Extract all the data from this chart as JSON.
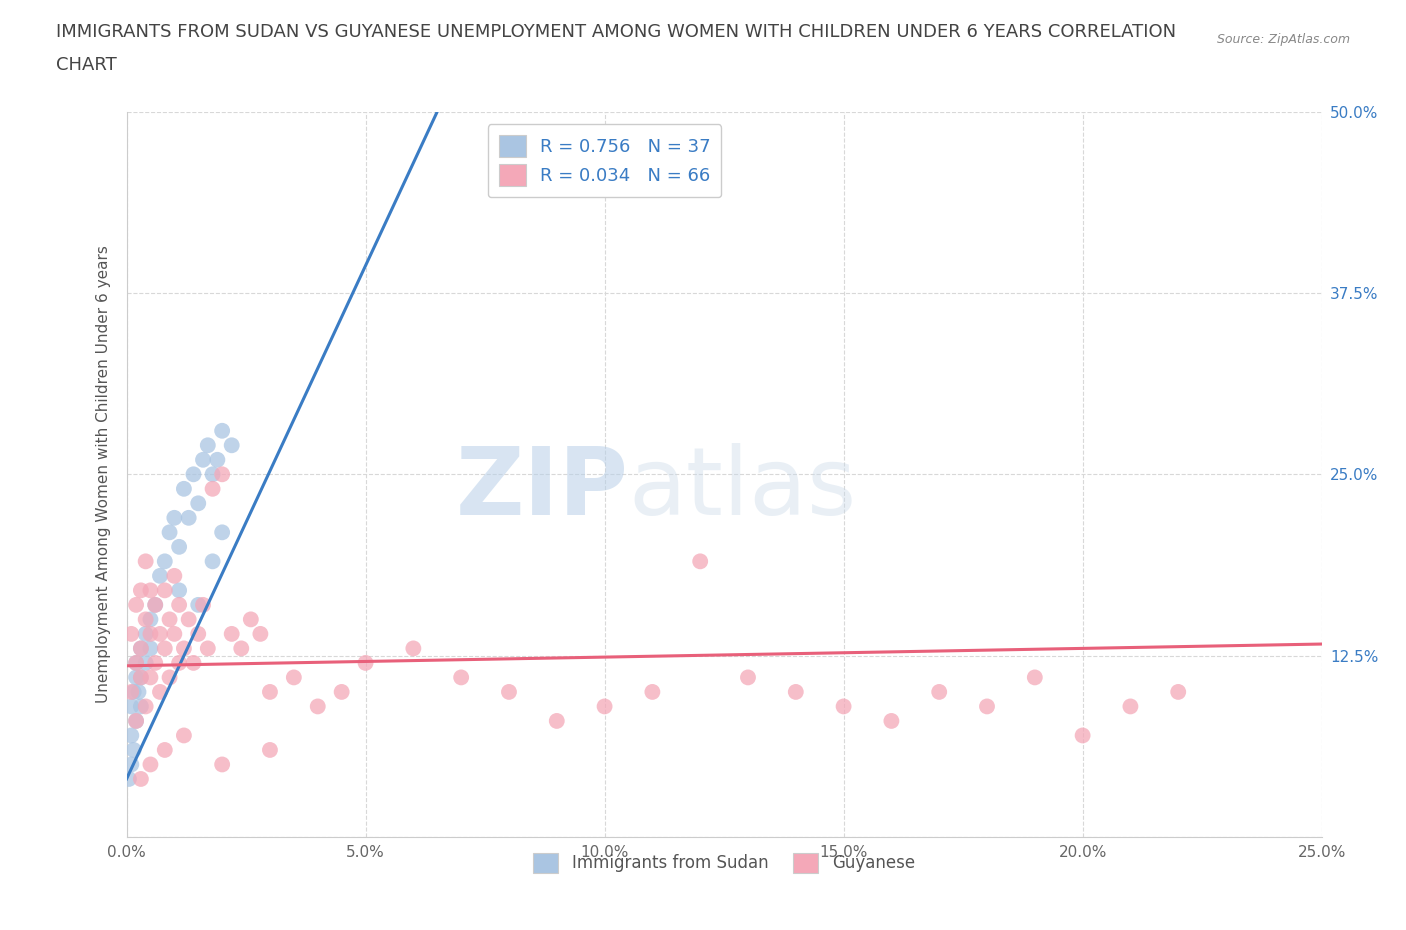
{
  "title_line1": "IMMIGRANTS FROM SUDAN VS GUYANESE UNEMPLOYMENT AMONG WOMEN WITH CHILDREN UNDER 6 YEARS CORRELATION",
  "title_line2": "CHART",
  "source": "Source: ZipAtlas.com",
  "ylabel": "Unemployment Among Women with Children Under 6 years",
  "xlim": [
    0.0,
    0.25
  ],
  "ylim": [
    0.0,
    0.5
  ],
  "xticks": [
    0.0,
    0.05,
    0.1,
    0.15,
    0.2,
    0.25
  ],
  "xtick_labels": [
    "0.0%",
    "5.0%",
    "10.0%",
    "15.0%",
    "20.0%",
    "25.0%"
  ],
  "yticks": [
    0.0,
    0.125,
    0.25,
    0.375,
    0.5
  ],
  "ytick_labels": [
    "",
    "12.5%",
    "25.0%",
    "37.5%",
    "50.0%"
  ],
  "legend_labels": [
    "Immigrants from Sudan",
    "Guyanese"
  ],
  "R_sudan": 0.756,
  "N_sudan": 37,
  "R_guyanese": 0.034,
  "N_guyanese": 66,
  "color_sudan": "#aac5e2",
  "color_guyanese": "#f4a8b8",
  "line_color_sudan": "#3a7cc4",
  "line_color_guyanese": "#e8607a",
  "watermark_zip": "ZIP",
  "watermark_atlas": "atlas",
  "background_color": "#ffffff",
  "grid_color": "#d8d8d8",
  "title_fontsize": 13,
  "axis_label_fontsize": 11,
  "tick_fontsize": 11,
  "sudan_x": [
    0.0005,
    0.001,
    0.001,
    0.001,
    0.0015,
    0.0015,
    0.002,
    0.002,
    0.002,
    0.0025,
    0.003,
    0.003,
    0.003,
    0.004,
    0.004,
    0.005,
    0.005,
    0.006,
    0.007,
    0.008,
    0.009,
    0.01,
    0.011,
    0.012,
    0.013,
    0.014,
    0.015,
    0.016,
    0.017,
    0.018,
    0.019,
    0.02,
    0.022,
    0.015,
    0.018,
    0.02,
    0.011
  ],
  "sudan_y": [
    0.04,
    0.05,
    0.07,
    0.09,
    0.06,
    0.1,
    0.08,
    0.11,
    0.12,
    0.1,
    0.13,
    0.09,
    0.11,
    0.14,
    0.12,
    0.15,
    0.13,
    0.16,
    0.18,
    0.19,
    0.21,
    0.22,
    0.2,
    0.24,
    0.22,
    0.25,
    0.23,
    0.26,
    0.27,
    0.25,
    0.26,
    0.28,
    0.27,
    0.16,
    0.19,
    0.21,
    0.17
  ],
  "guyanese_x": [
    0.001,
    0.001,
    0.002,
    0.002,
    0.002,
    0.003,
    0.003,
    0.003,
    0.004,
    0.004,
    0.004,
    0.005,
    0.005,
    0.005,
    0.006,
    0.006,
    0.007,
    0.007,
    0.008,
    0.008,
    0.009,
    0.009,
    0.01,
    0.01,
    0.011,
    0.011,
    0.012,
    0.013,
    0.014,
    0.015,
    0.016,
    0.017,
    0.018,
    0.02,
    0.022,
    0.024,
    0.026,
    0.028,
    0.03,
    0.035,
    0.04,
    0.045,
    0.05,
    0.06,
    0.07,
    0.08,
    0.09,
    0.1,
    0.11,
    0.12,
    0.13,
    0.14,
    0.15,
    0.16,
    0.17,
    0.18,
    0.19,
    0.2,
    0.21,
    0.22,
    0.003,
    0.005,
    0.008,
    0.012,
    0.02,
    0.03
  ],
  "guyanese_y": [
    0.1,
    0.14,
    0.12,
    0.16,
    0.08,
    0.13,
    0.17,
    0.11,
    0.15,
    0.09,
    0.19,
    0.14,
    0.11,
    0.17,
    0.12,
    0.16,
    0.1,
    0.14,
    0.13,
    0.17,
    0.11,
    0.15,
    0.14,
    0.18,
    0.12,
    0.16,
    0.13,
    0.15,
    0.12,
    0.14,
    0.16,
    0.13,
    0.24,
    0.25,
    0.14,
    0.13,
    0.15,
    0.14,
    0.1,
    0.11,
    0.09,
    0.1,
    0.12,
    0.13,
    0.11,
    0.1,
    0.08,
    0.09,
    0.1,
    0.19,
    0.11,
    0.1,
    0.09,
    0.08,
    0.1,
    0.09,
    0.11,
    0.07,
    0.09,
    0.1,
    0.04,
    0.05,
    0.06,
    0.07,
    0.05,
    0.06
  ],
  "sudan_line_x0": 0.0,
  "sudan_line_x1": 0.065,
  "sudan_line_y0": 0.04,
  "sudan_line_y1": 0.5,
  "guyanese_line_x0": 0.0,
  "guyanese_line_x1": 0.25,
  "guyanese_line_y0": 0.118,
  "guyanese_line_y1": 0.133
}
